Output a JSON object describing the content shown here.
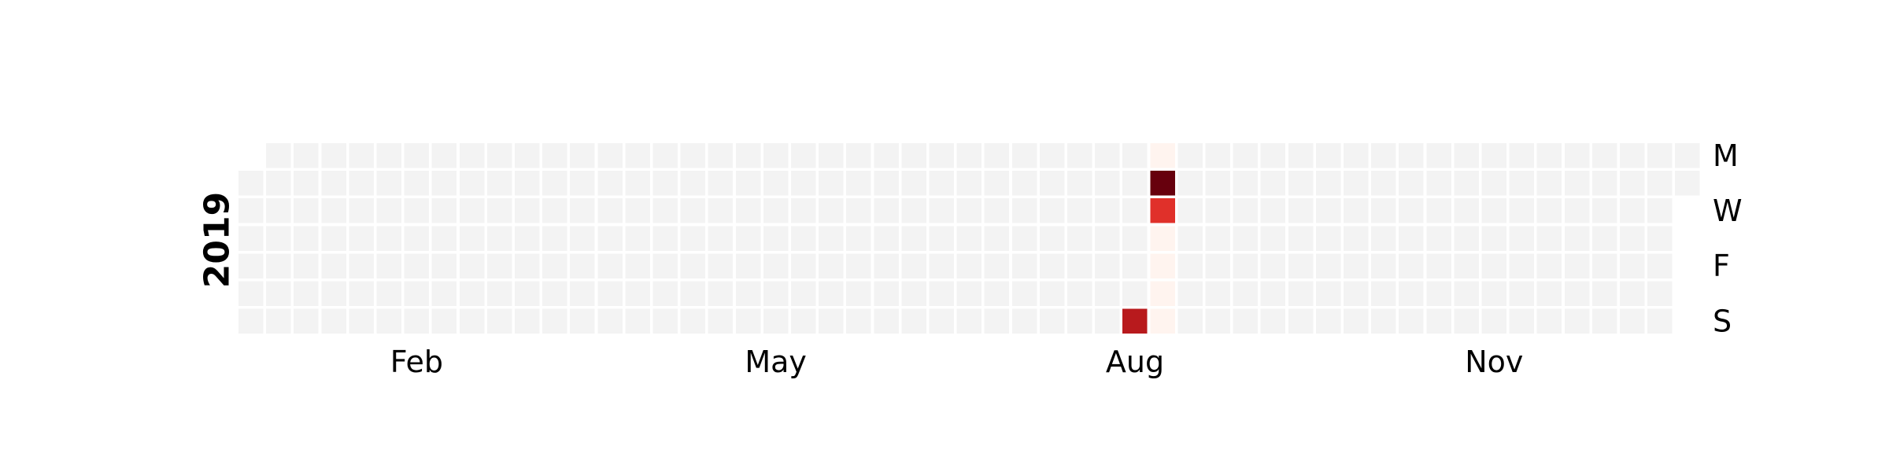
{
  "chart_data": {
    "type": "heatmap",
    "title": "",
    "year": "2019",
    "start_date": "2019-01-01",
    "end_date": "2019-12-31",
    "row_labels": [
      "M",
      "",
      "W",
      "",
      "F",
      "",
      "S"
    ],
    "month_labels": [
      {
        "label": "Feb",
        "date": "2019-02-01"
      },
      {
        "label": "May",
        "date": "2019-05-01"
      },
      {
        "label": "Aug",
        "date": "2019-08-01"
      },
      {
        "label": "Nov",
        "date": "2019-11-01"
      }
    ],
    "empty_color": "#f3f3f3",
    "colormap": "Reds",
    "values": [
      {
        "date": "2019-08-18",
        "value": 0.85
      },
      {
        "date": "2019-08-19",
        "value": 0.05
      },
      {
        "date": "2019-08-20",
        "value": 1.0
      },
      {
        "date": "2019-08-21",
        "value": 0.6
      },
      {
        "date": "2019-08-22",
        "value": 0.05
      },
      {
        "date": "2019-08-23",
        "value": 0.05
      },
      {
        "date": "2019-08-24",
        "value": 0.05
      },
      {
        "date": "2019-08-25",
        "value": 0.05
      }
    ],
    "colors": {
      "0.05": "#fff4ef",
      "0.6": "#e0302a",
      "0.85": "#b81a1d",
      "1.0": "#67000d"
    },
    "grid": false,
    "legend": "none"
  }
}
